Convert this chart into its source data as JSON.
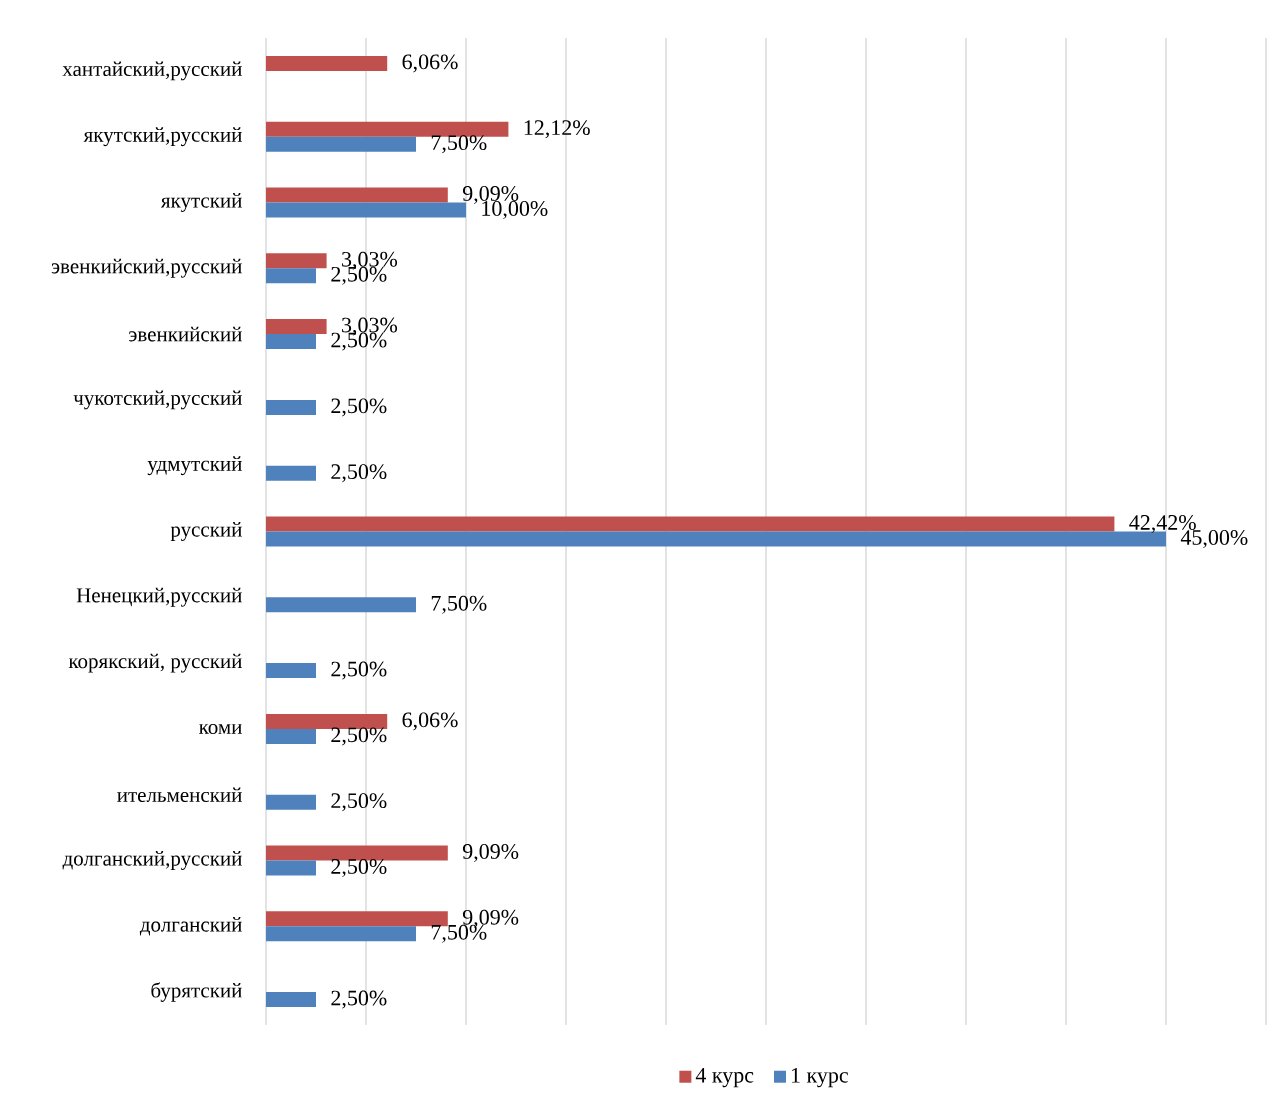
{
  "chart_data": {
    "type": "bar",
    "orientation": "horizontal",
    "categories": [
      "хантайский,русский",
      "якутский,русский",
      "якутский",
      "эвенкийский,русский",
      "эвенкийский",
      "чукотский,русский",
      "удмутский",
      "русский",
      "Ненецкий,русский",
      "корякский, русский",
      "коми",
      "ительменский",
      "долганский,русский",
      "долганский",
      "бурятский"
    ],
    "series": [
      {
        "name": "4 курс",
        "color": "#c0504d",
        "values": [
          6.06,
          12.12,
          9.09,
          3.03,
          3.03,
          null,
          null,
          42.42,
          null,
          null,
          6.06,
          null,
          9.09,
          9.09,
          null
        ],
        "value_labels": [
          "6,06%",
          "12,12%",
          "9,09%",
          "3,03%",
          "3,03%",
          null,
          null,
          "42,42%",
          null,
          null,
          "6,06%",
          null,
          "9,09%",
          "9,09%",
          null
        ]
      },
      {
        "name": "1 курс",
        "color": "#4f81bd",
        "values": [
          null,
          7.5,
          10.0,
          2.5,
          2.5,
          2.5,
          2.5,
          45.0,
          7.5,
          2.5,
          2.5,
          2.5,
          2.5,
          7.5,
          2.5
        ],
        "value_labels": [
          null,
          "7,50%",
          "10,00%",
          "2,50%",
          "2,50%",
          "2,50%",
          "2,50%",
          "45,00%",
          "7,50%",
          "2,50%",
          "2,50%",
          "2,50%",
          "2,50%",
          "7,50%",
          "2,50%"
        ]
      }
    ],
    "xlim": [
      0,
      50
    ],
    "xticks": [
      {
        "value": 0,
        "label": null
      },
      {
        "value": 5,
        "label": null
      },
      {
        "value": 10,
        "label": null
      },
      {
        "value": 15,
        "label": null
      },
      {
        "value": 20,
        "label": null
      },
      {
        "value": 25,
        "label": null
      },
      {
        "value": 30,
        "label": null
      },
      {
        "value": 35,
        "label": null
      },
      {
        "value": 40,
        "label": null
      },
      {
        "value": 45,
        "label": null
      },
      {
        "value": 50,
        "label": null
      }
    ],
    "grid": "x",
    "legend": "bottom",
    "tick_labels": "y"
  }
}
